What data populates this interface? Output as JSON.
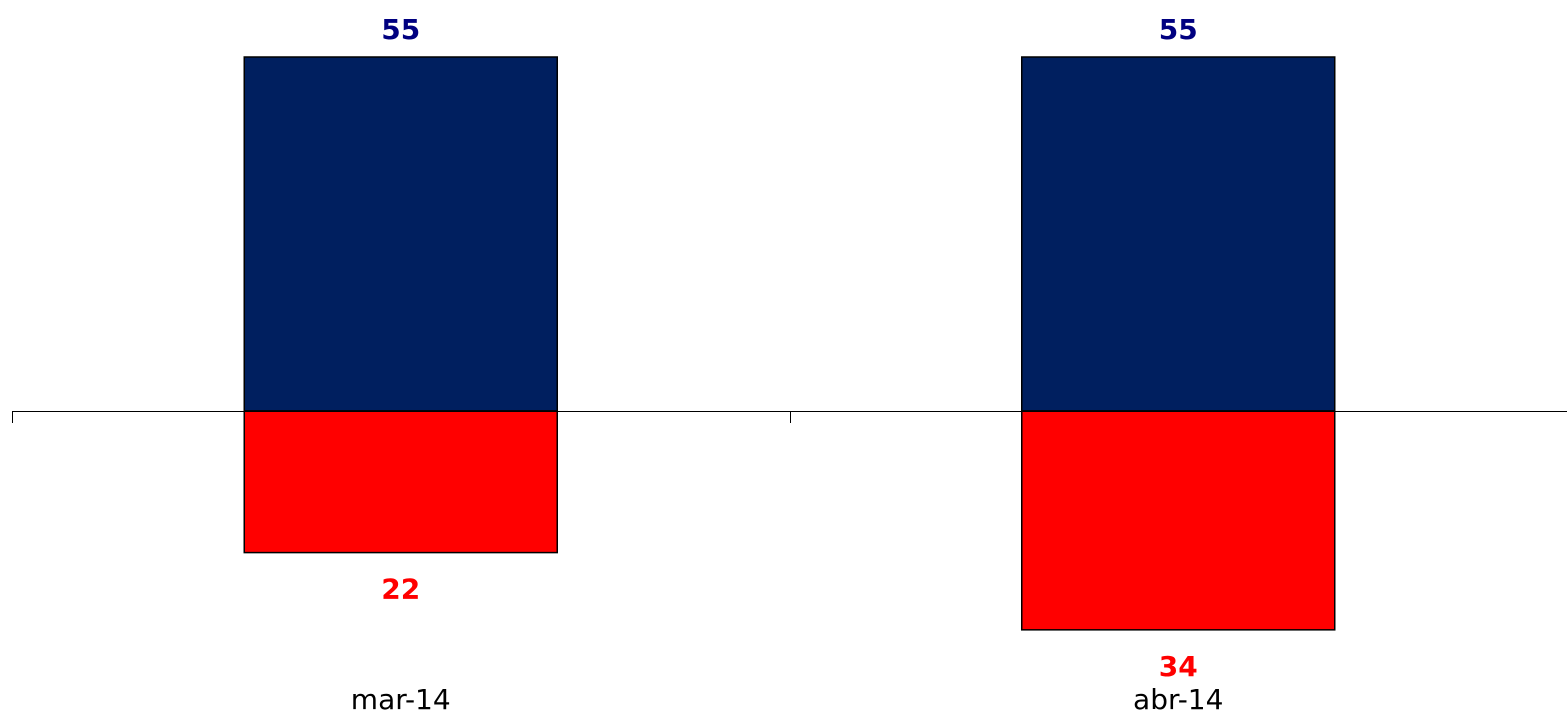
{
  "chart_data": {
    "type": "bar",
    "stacked": true,
    "diverging": true,
    "categories": [
      "mar-14",
      "abr-14"
    ],
    "series": [
      {
        "color": "#001F5F",
        "label_color": "#000080",
        "values": [
          55,
          55
        ]
      },
      {
        "color": "#FF0000",
        "label_color": "#FF0000",
        "values": [
          -22,
          -34
        ]
      }
    ],
    "value_labels": {
      "positive": [
        "55",
        "55"
      ],
      "negative": [
        "22",
        "34"
      ]
    },
    "ylim": [
      -34,
      55
    ],
    "grid": false,
    "legend": "none"
  }
}
